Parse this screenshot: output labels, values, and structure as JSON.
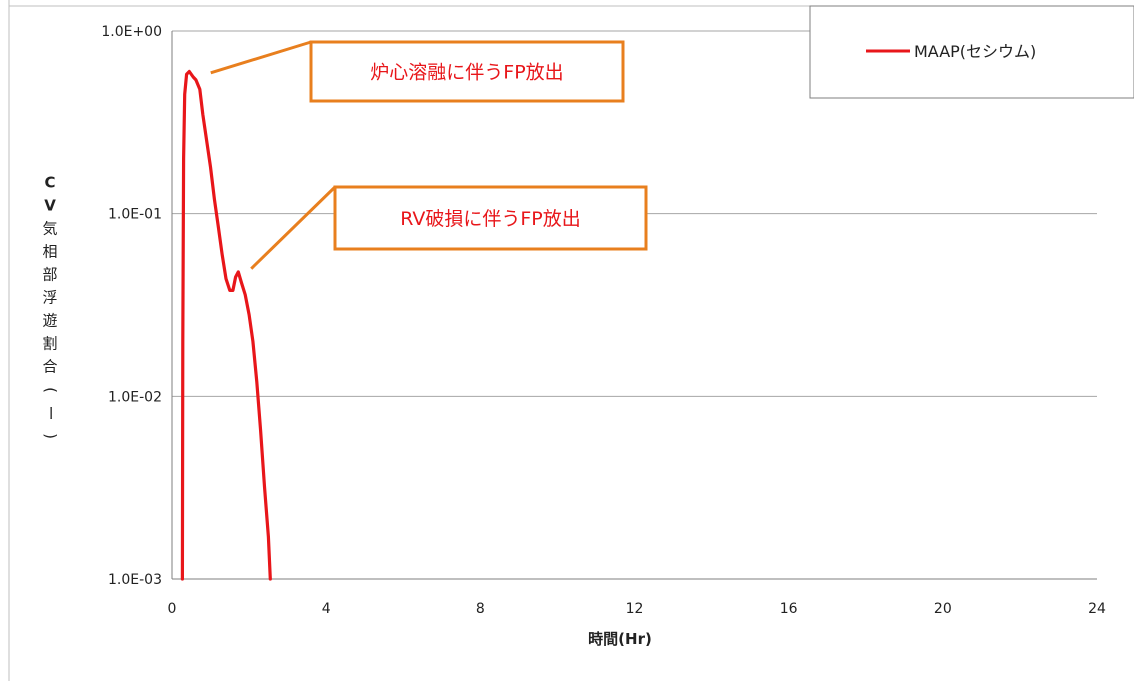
{
  "chart_data": {
    "type": "line",
    "title": "",
    "xlabel": "時間(Hr)",
    "ylabel": "CV気相部浮遊割合(ー)",
    "yscale": "log",
    "xlim": [
      0,
      24
    ],
    "ylim": [
      0.001,
      1
    ],
    "x_ticks": [
      "0",
      "4",
      "8",
      "12",
      "16",
      "20",
      "24"
    ],
    "y_ticks": [
      "1.0E-03",
      "1.0E-02",
      "1.0E-01",
      "1.0E+00"
    ],
    "grid": "horizontal",
    "legend_position": "top-right",
    "series": [
      {
        "name": "MAAP(セシウム)",
        "color": "#e8161a",
        "points": [
          [
            0.27,
            0.001
          ],
          [
            0.28,
            0.02
          ],
          [
            0.3,
            0.2
          ],
          [
            0.33,
            0.45
          ],
          [
            0.38,
            0.58
          ],
          [
            0.45,
            0.6
          ],
          [
            0.55,
            0.56
          ],
          [
            0.62,
            0.54
          ],
          [
            0.72,
            0.48
          ],
          [
            0.8,
            0.35
          ],
          [
            0.9,
            0.25
          ],
          [
            1.0,
            0.18
          ],
          [
            1.1,
            0.12
          ],
          [
            1.2,
            0.085
          ],
          [
            1.3,
            0.06
          ],
          [
            1.4,
            0.044
          ],
          [
            1.5,
            0.038
          ],
          [
            1.58,
            0.038
          ],
          [
            1.65,
            0.045
          ],
          [
            1.72,
            0.048
          ],
          [
            1.8,
            0.042
          ],
          [
            1.9,
            0.036
          ],
          [
            2.0,
            0.028
          ],
          [
            2.1,
            0.02
          ],
          [
            2.2,
            0.012
          ],
          [
            2.3,
            0.0065
          ],
          [
            2.4,
            0.0032
          ],
          [
            2.5,
            0.0017
          ],
          [
            2.55,
            0.001
          ]
        ]
      }
    ],
    "annotations": [
      {
        "text": "炉心溶融に伴うFP放出",
        "color": "#e8161a",
        "border": "#e87f1e",
        "point": [
          0.85,
          0.59
        ]
      },
      {
        "text": "RV破損に伴うFP放出",
        "color": "#e8161a",
        "border": "#e87f1e",
        "point": [
          1.9,
          0.05
        ]
      }
    ]
  }
}
